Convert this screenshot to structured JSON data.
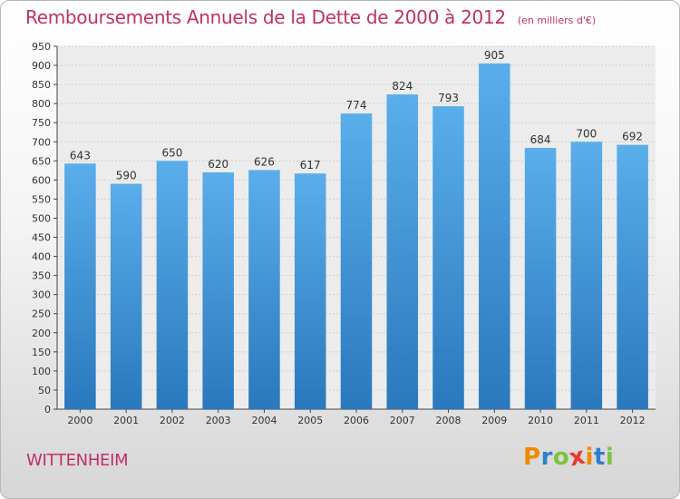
{
  "chart_data": {
    "type": "bar",
    "title": "Remboursements Annuels de la Dette de 2000 à 2012",
    "subtitle": "(en milliers d'€)",
    "categories": [
      "2000",
      "2001",
      "2002",
      "2003",
      "2004",
      "2005",
      "2006",
      "2007",
      "2008",
      "2009",
      "2010",
      "2011",
      "2012"
    ],
    "values": [
      643,
      590,
      650,
      620,
      626,
      617,
      774,
      824,
      793,
      905,
      684,
      700,
      692
    ],
    "ylim": [
      0,
      950
    ],
    "ytick_step": 50,
    "grid": true,
    "bar_color": "#4a9fe0",
    "value_labels": true
  },
  "footer": {
    "town": "WITTENHEIM",
    "logo_text": "Proxiti",
    "logo_colors": [
      "#f08a00",
      "#2f7fd0",
      "#7cc242",
      "#e8392a",
      "#f08a00",
      "#2f7fd0",
      "#7cc242"
    ]
  },
  "colors": {
    "title": "#c0306a"
  }
}
